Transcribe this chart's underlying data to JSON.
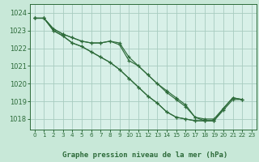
{
  "title": "Graphe pression niveau de la mer (hPa)",
  "fig_bg": "#c8e8d8",
  "plot_bg": "#d8f0e8",
  "grid_color": "#a8ccc0",
  "line_color": "#2d6b3a",
  "xlim": [
    -0.5,
    23.5
  ],
  "ylim": [
    1017.4,
    1024.5
  ],
  "yticks": [
    1018,
    1019,
    1020,
    1021,
    1022,
    1023,
    1024
  ],
  "xtick_labels": [
    "0",
    "1",
    "2",
    "3",
    "4",
    "5",
    "6",
    "7",
    "8",
    "9",
    "10",
    "11",
    "12",
    "13",
    "14",
    "15",
    "16",
    "17",
    "18",
    "19",
    "20",
    "21",
    "22",
    "23"
  ],
  "series": [
    {
      "x": [
        0,
        1,
        2,
        3,
        4,
        5,
        6,
        7,
        8,
        9,
        10,
        11,
        12,
        13,
        14,
        15,
        16,
        17,
        18,
        19,
        20,
        21,
        22
      ],
      "y": [
        1023.7,
        1023.7,
        1023.1,
        1022.8,
        1022.6,
        1022.4,
        1022.3,
        1022.3,
        1022.4,
        1022.3,
        1021.5,
        1021.0,
        1020.5,
        1020.0,
        1019.6,
        1019.2,
        1018.8,
        1018.1,
        1018.0,
        1018.0,
        1018.6,
        1019.2,
        1019.1
      ]
    },
    {
      "x": [
        0,
        1,
        2,
        3,
        4,
        5,
        6,
        7,
        8,
        9,
        10,
        11,
        12,
        13,
        14,
        15,
        16,
        17,
        18,
        19,
        20,
        21,
        22
      ],
      "y": [
        1023.7,
        1023.7,
        1023.1,
        1022.8,
        1022.6,
        1022.4,
        1022.3,
        1022.3,
        1022.4,
        1022.2,
        1021.3,
        1021.0,
        1020.5,
        1020.0,
        1019.5,
        1019.1,
        1018.7,
        1018.1,
        1017.9,
        1017.9,
        1018.5,
        1019.1,
        1019.1
      ]
    },
    {
      "x": [
        0,
        1,
        2,
        3,
        4,
        5,
        6,
        7,
        8,
        9,
        10,
        11,
        12,
        13,
        14,
        15,
        16,
        17,
        18,
        19
      ],
      "y": [
        1023.7,
        1023.7,
        1023.0,
        1022.7,
        1022.3,
        1022.1,
        1021.8,
        1021.5,
        1021.2,
        1020.8,
        1020.3,
        1019.8,
        1019.3,
        1018.9,
        1018.4,
        1018.1,
        1018.0,
        1017.9,
        1017.9,
        1017.9
      ]
    },
    {
      "x": [
        0,
        1,
        2,
        3,
        4,
        5,
        6,
        7,
        8,
        9,
        10,
        11,
        12,
        13,
        14,
        15,
        16,
        17,
        18,
        19,
        20,
        21,
        22
      ],
      "y": [
        1023.7,
        1023.7,
        1023.0,
        1022.7,
        1022.3,
        1022.1,
        1021.8,
        1021.5,
        1021.2,
        1020.8,
        1020.3,
        1019.8,
        1019.3,
        1018.9,
        1018.4,
        1018.1,
        1018.0,
        1017.9,
        1017.9,
        1017.9,
        1018.6,
        1019.2,
        1019.1
      ]
    }
  ]
}
